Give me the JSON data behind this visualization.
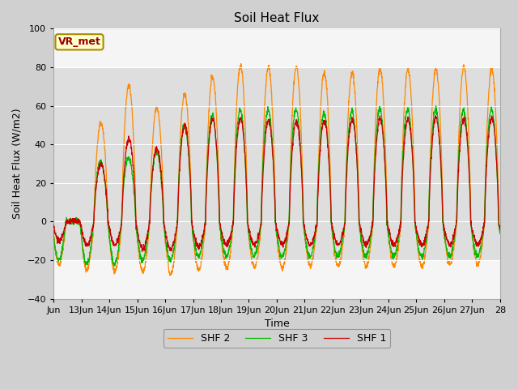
{
  "title": "Soil Heat Flux",
  "xlabel": "Time",
  "ylabel": "Soil Heat Flux (W/m2)",
  "ylim": [
    -40,
    100
  ],
  "yticks": [
    -40,
    -20,
    0,
    20,
    40,
    60,
    80,
    100
  ],
  "shaded_ymin": -20,
  "shaded_ymax": 80,
  "line_colors": {
    "SHF 1": "#cc0000",
    "SHF 2": "#ff8800",
    "SHF 3": "#00bb00"
  },
  "legend_labels": [
    "SHF 1",
    "SHF 2",
    "SHF 3"
  ],
  "vr_met_label": "VR_met",
  "vr_met_color": "#990000",
  "vr_met_bg": "#ffffcc",
  "vr_met_border": "#aa8800",
  "figure_facecolor": "#d0d0d0",
  "axes_facecolor": "#f5f5f5",
  "grid_color": "#ffffff",
  "xtick_labels": [
    "Jun",
    "13Jun",
    "14Jun",
    "15Jun",
    "16Jun",
    "17Jun",
    "18Jun",
    "19Jun",
    "20Jun",
    "21Jun",
    "22Jun",
    "23Jun",
    "24Jun",
    "25Jun",
    "26Jun",
    "27Jun",
    "28"
  ],
  "xtick_positions": [
    0,
    1,
    2,
    3,
    4,
    5,
    6,
    7,
    8,
    9,
    10,
    11,
    12,
    13,
    14,
    15,
    16
  ]
}
